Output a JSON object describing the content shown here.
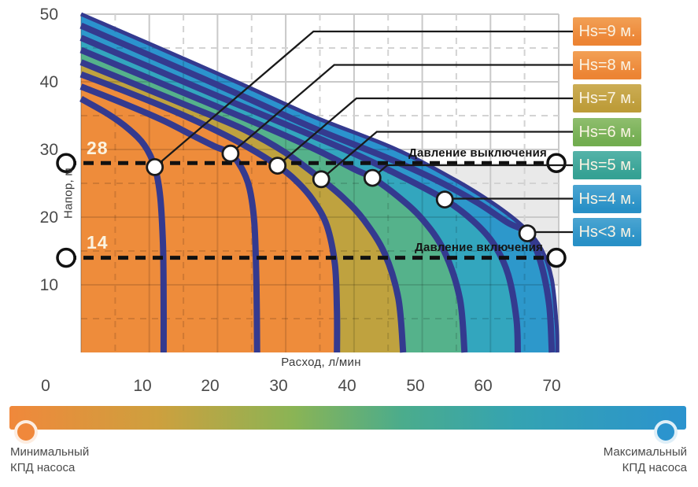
{
  "chart_data": {
    "type": "area",
    "title": "",
    "xlabel": "Расход, л/мин",
    "ylabel": "Напор, м",
    "xlim": [
      0,
      70
    ],
    "ylim": [
      0,
      50
    ],
    "x_ticks": [
      0,
      10,
      20,
      30,
      40,
      50,
      60,
      70
    ],
    "y_ticks": [
      10,
      20,
      30,
      40,
      50
    ],
    "grid": {
      "solid_every": 10,
      "dashed_every": 5
    },
    "pressure_lines": [
      {
        "id": "cutoff",
        "label": "Давление выключения",
        "value": 28,
        "value_label": "28"
      },
      {
        "id": "cutin",
        "label": "Давление включения",
        "value": 14,
        "value_label": "14"
      }
    ],
    "envelope": {
      "points": [
        [
          0,
          50
        ],
        [
          11,
          45.2
        ],
        [
          23,
          39.9
        ],
        [
          34,
          34.9
        ],
        [
          46,
          30.1
        ],
        [
          55,
          25.4
        ],
        [
          61,
          21.6
        ],
        [
          65,
          18.4
        ],
        [
          67.5,
          15.2
        ],
        [
          69,
          10.8
        ],
        [
          69.7,
          4
        ],
        [
          69.8,
          0
        ]
      ]
    },
    "series": [
      {
        "id": "hs9",
        "label": "Hs=9 м.",
        "legend_color": "#EC8434",
        "legend_color_light": "#F2A055",
        "band_color": "#EE8C3B",
        "band_below_color": "#EE8C3B",
        "marker": [
          10.8,
          27.4
        ],
        "points": [
          [
            0,
            37.5
          ],
          [
            4,
            35.2
          ],
          [
            7,
            33
          ],
          [
            9.3,
            30.6
          ],
          [
            10.8,
            27.4
          ],
          [
            11.6,
            23
          ],
          [
            12,
            16
          ],
          [
            12.1,
            8
          ],
          [
            12.1,
            0
          ]
        ]
      },
      {
        "id": "hs8",
        "label": "Hs=8 м.",
        "legend_color": "#EC8434",
        "legend_color_light": "#F2A055",
        "band_color": "#EE8C3B",
        "marker": [
          21.9,
          29.4
        ],
        "points": [
          [
            0,
            39.3
          ],
          [
            6,
            36.9
          ],
          [
            12,
            34.3
          ],
          [
            16.5,
            32
          ],
          [
            19.5,
            30.5
          ],
          [
            21.9,
            29.4
          ],
          [
            23.5,
            27.3
          ],
          [
            24.7,
            24.2
          ],
          [
            25.4,
            19
          ],
          [
            25.7,
            10
          ],
          [
            25.8,
            0
          ]
        ]
      },
      {
        "id": "hs7",
        "label": "Hs=7 м.",
        "legend_color": "#BD9C39",
        "legend_color_light": "#CCAD55",
        "band_color": "#BFA23F",
        "marker": [
          28.8,
          27.6
        ],
        "points": [
          [
            0,
            41.1
          ],
          [
            7,
            38.4
          ],
          [
            14,
            35.5
          ],
          [
            20,
            32.7
          ],
          [
            24.5,
            30.3
          ],
          [
            28.8,
            27.6
          ],
          [
            31.5,
            25.4
          ],
          [
            34,
            22.5
          ],
          [
            36,
            18.8
          ],
          [
            37.2,
            13
          ],
          [
            37.5,
            6
          ],
          [
            37.5,
            0
          ]
        ]
      },
      {
        "id": "hs6",
        "label": "Hs=6 м.",
        "legend_color": "#72AD50",
        "legend_color_light": "#8FBE6E",
        "band_color": "#55B28B",
        "marker": [
          35.2,
          25.6
        ],
        "points": [
          [
            0,
            42.9
          ],
          [
            8,
            39.6
          ],
          [
            16,
            36.3
          ],
          [
            24,
            32.9
          ],
          [
            30,
            29.5
          ],
          [
            35.2,
            25.6
          ],
          [
            38.5,
            22.8
          ],
          [
            41.5,
            19.5
          ],
          [
            44.5,
            14.6
          ],
          [
            46.5,
            8
          ],
          [
            47.2,
            0
          ]
        ]
      },
      {
        "id": "hs5",
        "label": "Hs=5 м.",
        "legend_color": "#35A194",
        "legend_color_light": "#55B3A8",
        "band_color": "#33A6BE",
        "marker": [
          42.7,
          25.8
        ],
        "points": [
          [
            0,
            44.7
          ],
          [
            10,
            40.5
          ],
          [
            20,
            36.3
          ],
          [
            28,
            32.9
          ],
          [
            35,
            29.7
          ],
          [
            40,
            27.1
          ],
          [
            42.7,
            25.8
          ],
          [
            46.5,
            23
          ],
          [
            50,
            19.7
          ],
          [
            53.2,
            15
          ],
          [
            55.5,
            8
          ],
          [
            56.2,
            0
          ]
        ]
      },
      {
        "id": "hs4",
        "label": "Hs=4 м.",
        "legend_color": "#2890C6",
        "legend_color_light": "#4BA5D2",
        "band_color": "#2D98CB",
        "marker": [
          53.3,
          22.6
        ],
        "points": [
          [
            0,
            46.5
          ],
          [
            10,
            42.2
          ],
          [
            20,
            37.9
          ],
          [
            30,
            33.7
          ],
          [
            40,
            29.4
          ],
          [
            47,
            26
          ],
          [
            53.3,
            22.6
          ],
          [
            57.5,
            19.4
          ],
          [
            60.5,
            16
          ],
          [
            62.6,
            11.5
          ],
          [
            63.8,
            5
          ],
          [
            64,
            0
          ]
        ]
      },
      {
        "id": "hs3",
        "label": "Hs<3 м.",
        "legend_color": "#2890C6",
        "legend_color_light": "#4BA5D2",
        "band_color": "#2B93CE",
        "marker": [
          65.4,
          17.6
        ],
        "points": [
          [
            0,
            48.3
          ],
          [
            11,
            43.5
          ],
          [
            23,
            38.2
          ],
          [
            34,
            33.2
          ],
          [
            45,
            28.7
          ],
          [
            52,
            25.5
          ],
          [
            58,
            22.2
          ],
          [
            62.5,
            19.2
          ],
          [
            65.4,
            17.6
          ],
          [
            67.3,
            13.5
          ],
          [
            68.6,
            7
          ],
          [
            69,
            0
          ]
        ]
      }
    ],
    "efficiency_scale": {
      "min_label": "Минимальный\nКПД насоса",
      "max_label": "Максимальный\nКПД насоса",
      "min_color": "#F0883B",
      "max_color": "#2B94CE",
      "gradient": [
        {
          "color": "#F0883B",
          "pos": 0
        },
        {
          "color": "#CDA03E",
          "pos": 22
        },
        {
          "color": "#8AB455",
          "pos": 42
        },
        {
          "color": "#4BAC8C",
          "pos": 58
        },
        {
          "color": "#34A3B2",
          "pos": 75
        },
        {
          "color": "#2B93CE",
          "pos": 100
        }
      ]
    }
  },
  "palette": {
    "curve_navy": "#343A8F",
    "grid_solid": "#C9C9C9",
    "grid_dashed": "#D3D3D3",
    "grid_over_fill": "rgba(0,0,0,0.13)",
    "zone_gray": "#E9E9E9",
    "callout_black": "#1A1A1A",
    "marker_fill": "#FFFFFF",
    "pressure_line": "#111111"
  }
}
